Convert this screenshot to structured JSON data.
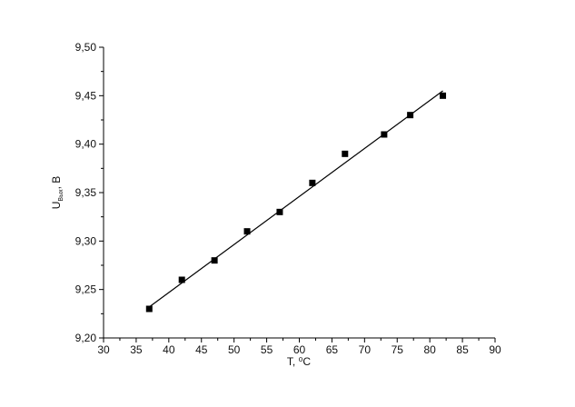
{
  "chart_data": {
    "type": "scatter",
    "xlabel": "T, ⁰C",
    "ylabel_main": "U",
    "ylabel_sub": "Вых",
    "ylabel_unit": ", В",
    "xlim": [
      30,
      90
    ],
    "ylim": [
      9.2,
      9.5
    ],
    "x_ticks": [
      30,
      35,
      40,
      45,
      50,
      55,
      60,
      65,
      70,
      75,
      80,
      85,
      90
    ],
    "y_ticks": [
      "9,20",
      "9,25",
      "9,30",
      "9,35",
      "9,40",
      "9,45",
      "9,50"
    ],
    "grid": false,
    "points": [
      {
        "x": 37,
        "y": 9.23
      },
      {
        "x": 42,
        "y": 9.26
      },
      {
        "x": 47,
        "y": 9.28
      },
      {
        "x": 52,
        "y": 9.31
      },
      {
        "x": 57,
        "y": 9.33
      },
      {
        "x": 62,
        "y": 9.36
      },
      {
        "x": 67,
        "y": 9.39
      },
      {
        "x": 73,
        "y": 9.41
      },
      {
        "x": 77,
        "y": 9.43
      },
      {
        "x": 82,
        "y": 9.45
      }
    ],
    "fit_line": {
      "x_start": 37,
      "y_start": 9.232,
      "x_end": 82,
      "y_end": 9.455
    },
    "marker": "filled-square",
    "color": "#000000"
  }
}
